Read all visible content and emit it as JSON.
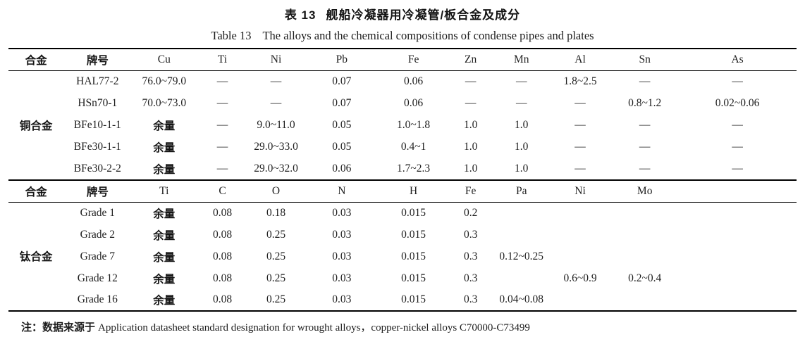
{
  "titles": {
    "zh_prefix": "表 13",
    "zh_main": "舰船冷凝器用冷凝管/板合金及成分",
    "en_prefix": "Table 13",
    "en_main": "The alloys and the chemical compositions of condense pipes and plates"
  },
  "copper_section": {
    "headers": [
      "合金",
      "牌号",
      "Cu",
      "Ti",
      "Ni",
      "Pb",
      "Fe",
      "Zn",
      "Mn",
      "Al",
      "Sn",
      "As"
    ],
    "group_label": "铜合金",
    "rows": [
      {
        "grade": "HAL77-2",
        "values": [
          "76.0~79.0",
          "—",
          "—",
          "0.07",
          "0.06",
          "—",
          "—",
          "1.8~2.5",
          "—",
          "—"
        ]
      },
      {
        "grade": "HSn70-1",
        "values": [
          "70.0~73.0",
          "—",
          "—",
          "0.07",
          "0.06",
          "—",
          "—",
          "—",
          "0.8~1.2",
          "0.02~0.06"
        ]
      },
      {
        "grade": "BFe10-1-1",
        "values": [
          "余量",
          "—",
          "9.0~11.0",
          "0.05",
          "1.0~1.8",
          "1.0",
          "1.0",
          "—",
          "—",
          "—"
        ]
      },
      {
        "grade": "BFe30-1-1",
        "values": [
          "余量",
          "—",
          "29.0~33.0",
          "0.05",
          "0.4~1",
          "1.0",
          "1.0",
          "—",
          "—",
          "—"
        ]
      },
      {
        "grade": "BFe30-2-2",
        "values": [
          "余量",
          "—",
          "29.0~32.0",
          "0.06",
          "1.7~2.3",
          "1.0",
          "1.0",
          "—",
          "—",
          "—"
        ]
      }
    ]
  },
  "titanium_section": {
    "headers": [
      "合金",
      "牌号",
      "Ti",
      "C",
      "O",
      "N",
      "H",
      "Fe",
      "Pa",
      "Ni",
      "Mo",
      ""
    ],
    "group_label": "钛合金",
    "rows": [
      {
        "grade": "Grade 1",
        "values": [
          "余量",
          "0.08",
          "0.18",
          "0.03",
          "0.015",
          "0.2",
          "",
          "",
          "",
          ""
        ]
      },
      {
        "grade": "Grade 2",
        "values": [
          "余量",
          "0.08",
          "0.25",
          "0.03",
          "0.015",
          "0.3",
          "",
          "",
          "",
          ""
        ]
      },
      {
        "grade": "Grade 7",
        "values": [
          "余量",
          "0.08",
          "0.25",
          "0.03",
          "0.015",
          "0.3",
          "0.12~0.25",
          "",
          "",
          ""
        ]
      },
      {
        "grade": "Grade 12",
        "values": [
          "余量",
          "0.08",
          "0.25",
          "0.03",
          "0.015",
          "0.3",
          "",
          "0.6~0.9",
          "0.2~0.4",
          ""
        ]
      },
      {
        "grade": "Grade 16",
        "values": [
          "余量",
          "0.08",
          "0.25",
          "0.03",
          "0.015",
          "0.3",
          "0.04~0.08",
          "",
          "",
          ""
        ]
      }
    ]
  },
  "footnote": {
    "zh": "注：数据来源于",
    "en": "Application datasheet standard designation for wrought alloys，copper-nickel alloys C70000-C73499"
  }
}
